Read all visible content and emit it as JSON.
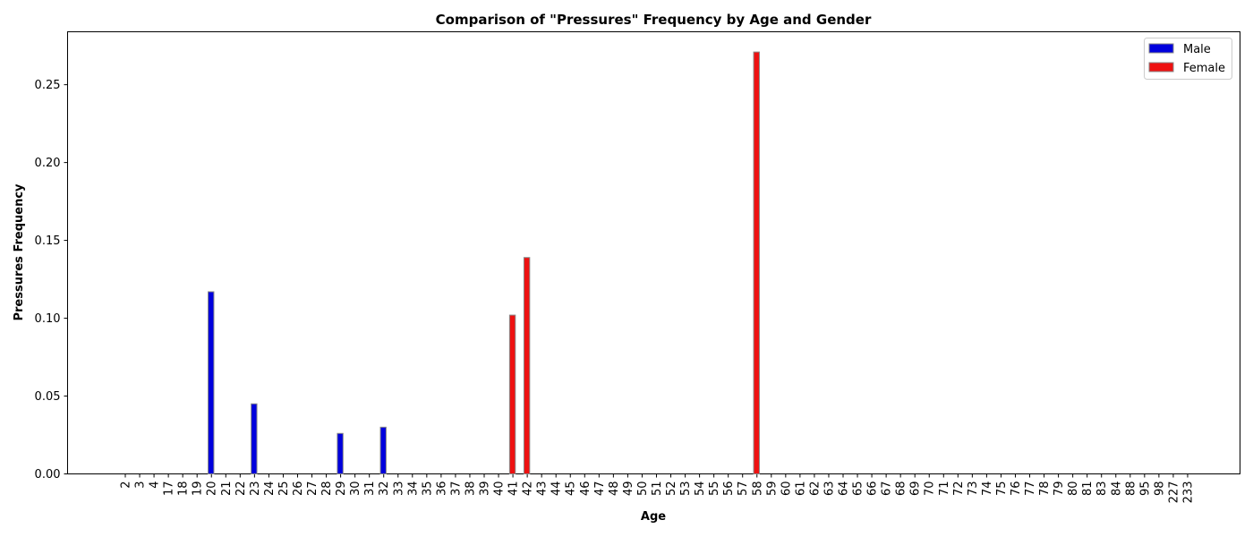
{
  "chart_data": {
    "type": "bar",
    "title": "Comparison of \"Pressures\" Frequency by Age and Gender",
    "xlabel": "Age",
    "ylabel": "Pressures Frequency",
    "ylim": [
      0,
      0.284
    ],
    "yticks": [
      "0.00",
      "0.05",
      "0.10",
      "0.15",
      "0.20",
      "0.25"
    ],
    "ytick_values": [
      0,
      0.05,
      0.1,
      0.15,
      0.2,
      0.25
    ],
    "grid": false,
    "legend_position": "top-right",
    "categories": [
      "2",
      "3",
      "4",
      "17",
      "18",
      "19",
      "20",
      "21",
      "22",
      "23",
      "24",
      "25",
      "26",
      "27",
      "28",
      "29",
      "30",
      "31",
      "32",
      "33",
      "34",
      "35",
      "36",
      "37",
      "38",
      "39",
      "40",
      "41",
      "42",
      "43",
      "44",
      "45",
      "46",
      "47",
      "48",
      "49",
      "50",
      "51",
      "52",
      "53",
      "54",
      "55",
      "56",
      "57",
      "58",
      "59",
      "60",
      "61",
      "62",
      "63",
      "64",
      "65",
      "66",
      "67",
      "68",
      "69",
      "70",
      "71",
      "72",
      "73",
      "74",
      "75",
      "76",
      "77",
      "78",
      "79",
      "80",
      "81",
      "83",
      "84",
      "88",
      "95",
      "98",
      "227",
      "233"
    ],
    "series": [
      {
        "name": "Male",
        "color": "#0000dd",
        "values": [
          0,
          0,
          0,
          0,
          0,
          0,
          0.117,
          0,
          0,
          0.045,
          0,
          0,
          0,
          0,
          0,
          0.026,
          0,
          0,
          0.03,
          0,
          0,
          0,
          0,
          0,
          0,
          0,
          0,
          0,
          0,
          0,
          0,
          0,
          0,
          0,
          0,
          0,
          0,
          0,
          0,
          0,
          0,
          0,
          0,
          0,
          0,
          0,
          0,
          0,
          0,
          0,
          0,
          0,
          0,
          0,
          0,
          0,
          0,
          0,
          0,
          0,
          0,
          0,
          0,
          0,
          0,
          0,
          0,
          0,
          0,
          0,
          0,
          0,
          0,
          0,
          0
        ]
      },
      {
        "name": "Female",
        "color": "#ee1111",
        "values": [
          0,
          0,
          0,
          0,
          0,
          0,
          0,
          0,
          0,
          0,
          0,
          0,
          0,
          0,
          0,
          0,
          0,
          0,
          0,
          0,
          0,
          0,
          0,
          0,
          0,
          0,
          0,
          0.102,
          0.139,
          0,
          0,
          0,
          0,
          0,
          0,
          0,
          0,
          0,
          0,
          0,
          0,
          0,
          0,
          0,
          0.271,
          0,
          0,
          0,
          0,
          0,
          0,
          0,
          0,
          0,
          0,
          0,
          0,
          0,
          0,
          0,
          0,
          0,
          0,
          0,
          0,
          0,
          0,
          0,
          0,
          0,
          0,
          0,
          0,
          0,
          0
        ]
      }
    ]
  }
}
